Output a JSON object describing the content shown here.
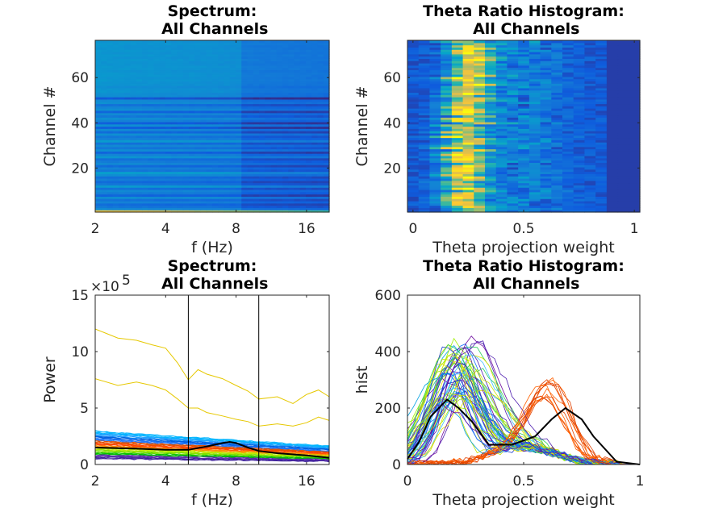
{
  "chart_data": [
    {
      "type": "heatmap",
      "title": "Spectrum: All Channels",
      "xlabel": "f (Hz)",
      "ylabel": "Channel #",
      "xscale": "log",
      "xlim": [
        2,
        20
      ],
      "ylim": [
        0.5,
        76.5
      ],
      "xticks": [
        2,
        4,
        8,
        16
      ],
      "xtick_labels": [
        "2",
        "4",
        "8",
        "16"
      ],
      "yticks": [
        20,
        40,
        60
      ],
      "ytick_labels": [
        "20",
        "40",
        "60"
      ],
      "colormap": "parula",
      "channel_level": [
        0.85,
        0.28,
        0.22,
        0.18,
        0.26,
        0.2,
        0.3,
        0.16,
        0.24,
        0.28,
        0.2,
        0.34,
        0.22,
        0.18,
        0.24,
        0.2,
        0.3,
        0.36,
        0.22,
        0.26,
        0.18,
        0.28,
        0.24,
        0.2,
        0.32,
        0.26,
        0.16,
        0.3,
        0.22,
        0.28,
        0.2,
        0.34,
        0.26,
        0.22,
        0.3,
        0.18,
        0.28,
        0.14,
        0.3,
        0.14,
        0.26,
        0.3,
        0.22,
        0.28,
        0.16,
        0.3,
        0.26,
        0.2,
        0.3,
        0.28,
        0.12,
        0.3,
        0.3,
        0.32,
        0.32,
        0.3,
        0.32,
        0.32,
        0.33,
        0.32,
        0.33,
        0.33,
        0.32,
        0.33,
        0.33,
        0.32,
        0.32,
        0.33,
        0.32,
        0.33,
        0.32,
        0.33,
        0.32,
        0.32,
        0.33,
        0.32
      ]
    },
    {
      "type": "heatmap",
      "title": "Theta Ratio Histogram: All Channels",
      "xlabel": "Theta projection weight",
      "ylabel": "Channel #",
      "xlim": [
        -0.025,
        1.025
      ],
      "ylim": [
        0.5,
        76.5
      ],
      "xticks": [
        0,
        0.5,
        1
      ],
      "xtick_labels": [
        "0",
        "0.5",
        "1"
      ],
      "yticks": [
        20,
        40,
        60
      ],
      "ytick_labels": [
        "20",
        "40",
        "60"
      ],
      "colormap": "parula"
    },
    {
      "type": "line",
      "title": "Spectrum: All Channels",
      "xlabel": "f (Hz)",
      "ylabel": "Power",
      "exponent_label": "×10",
      "exponent": "5",
      "xscale": "log",
      "xlim": [
        2,
        20
      ],
      "ylim": [
        0,
        15
      ],
      "xticks": [
        2,
        4,
        8,
        16
      ],
      "xtick_labels": [
        "2",
        "4",
        "8",
        "16"
      ],
      "yticks": [
        0,
        5,
        10,
        15
      ],
      "ytick_labels": [
        "0",
        "5",
        "10",
        "15"
      ],
      "vlines": [
        5,
        10
      ],
      "series": [
        {
          "color": "#e6c800",
          "x": [
            2,
            2.5,
            3,
            3.5,
            4,
            4.5,
            5,
            5.5,
            6,
            7,
            8,
            9,
            10,
            12,
            14,
            16,
            18,
            20
          ],
          "y": [
            12,
            11.2,
            11,
            10.6,
            10.3,
            9,
            7.5,
            8.4,
            8,
            7.6,
            7,
            6.5,
            5.8,
            6,
            5.4,
            6.2,
            6.6,
            6
          ]
        },
        {
          "color": "#e6c800",
          "x": [
            2,
            2.5,
            3,
            3.5,
            4,
            4.5,
            5,
            5.5,
            6,
            7,
            8,
            9,
            10,
            12,
            14,
            16,
            18,
            20
          ],
          "y": [
            7.6,
            7,
            7.3,
            7,
            6.6,
            5.8,
            5,
            5,
            4.6,
            4.3,
            4,
            3.8,
            3.4,
            3.6,
            3.4,
            3.7,
            4.2,
            3.9
          ]
        },
        {
          "color": "#000000",
          "x": [
            2,
            3,
            4,
            5,
            6,
            7,
            7.5,
            8,
            9,
            10,
            12,
            16,
            20
          ],
          "y": [
            1.5,
            1.4,
            1.3,
            1.3,
            1.6,
            1.9,
            2.0,
            1.9,
            1.5,
            1.2,
            1.0,
            0.8,
            0.6
          ]
        }
      ]
    },
    {
      "type": "line",
      "title": "Theta Ratio Histogram: All Channels",
      "xlabel": "Theta projection weight",
      "ylabel": "hist",
      "xlim": [
        0,
        1
      ],
      "ylim": [
        0,
        600
      ],
      "xticks": [
        0,
        0.5,
        1
      ],
      "xtick_labels": [
        "0",
        "0.5",
        "1"
      ],
      "yticks": [
        0,
        200,
        400,
        600
      ],
      "ytick_labels": [
        "0",
        "200",
        "400",
        "600"
      ],
      "series": [
        {
          "color": "#000000",
          "x": [
            0,
            0.05,
            0.1,
            0.17,
            0.22,
            0.28,
            0.35,
            0.45,
            0.55,
            0.62,
            0.68,
            0.75,
            0.8,
            0.9,
            1
          ],
          "y": [
            20,
            80,
            170,
            230,
            200,
            150,
            70,
            70,
            100,
            160,
            200,
            160,
            100,
            10,
            0
          ]
        }
      ]
    }
  ]
}
